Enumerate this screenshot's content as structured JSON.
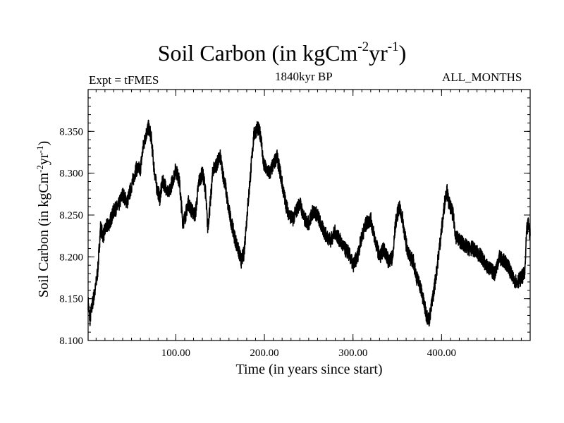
{
  "header": {
    "title_main": "Soil Carbon (in kgCm",
    "title_exp1": "-2",
    "title_mid": "yr",
    "title_exp2": "-1",
    "title_end": ")",
    "expt": "Expt = tFMES",
    "period": "1840kyr BP",
    "months": "ALL_MONTHS"
  },
  "chart_data": {
    "type": "line",
    "title": "Soil Carbon (in kgCm-2yr-1)",
    "xlabel": "Time (in years since start)",
    "ylabel": "Soil Carbon (in kgCm-2yr-1)",
    "ylabel_parts": {
      "main": "Soil Carbon (in kgCm",
      "exp1": "-2",
      "mid": "yr",
      "exp2": "-1",
      "end": ")"
    },
    "xlim": [
      1,
      500
    ],
    "ylim": [
      8.1,
      8.4
    ],
    "xticks": [
      100,
      200,
      300,
      400
    ],
    "xtick_labels": [
      "100.00",
      "200.00",
      "300.00",
      "400.00"
    ],
    "yticks": [
      8.1,
      8.15,
      8.2,
      8.25,
      8.3,
      8.35
    ],
    "ytick_labels": [
      "8.100",
      "8.150",
      "8.200",
      "8.250",
      "8.300",
      "8.350"
    ],
    "grid": false,
    "line_color": "#000000",
    "series": [
      {
        "x": [
          1,
          3,
          6,
          9,
          12,
          15,
          18,
          21,
          25,
          30,
          35,
          40,
          45,
          50,
          55,
          60,
          63,
          66,
          69,
          72,
          75,
          78,
          82,
          85,
          88,
          92,
          96,
          100,
          104,
          108,
          111,
          114,
          118,
          122,
          126,
          130,
          133,
          136,
          139,
          142,
          146,
          150,
          153,
          156,
          159,
          162,
          166,
          170,
          174,
          177,
          180,
          184,
          188,
          192,
          196,
          199,
          202,
          206,
          210,
          214,
          218,
          222,
          225,
          228,
          232,
          236,
          240,
          245,
          250,
          255,
          260,
          265,
          270,
          275,
          280,
          285,
          290,
          295,
          300,
          305,
          310,
          315,
          320,
          325,
          330,
          335,
          340,
          345,
          348,
          352,
          356,
          360,
          364,
          368,
          372,
          376,
          380,
          383,
          386,
          390,
          394,
          398,
          402,
          404,
          406,
          408,
          410,
          413,
          416,
          420,
          425,
          430,
          435,
          440,
          445,
          450,
          455,
          460,
          465,
          470,
          475,
          480,
          485,
          490,
          494,
          496,
          498,
          500
        ],
        "y": [
          8.145,
          8.125,
          8.145,
          8.16,
          8.185,
          8.235,
          8.225,
          8.235,
          8.24,
          8.255,
          8.26,
          8.275,
          8.265,
          8.285,
          8.305,
          8.305,
          8.33,
          8.345,
          8.355,
          8.345,
          8.31,
          8.285,
          8.27,
          8.29,
          8.285,
          8.275,
          8.29,
          8.305,
          8.29,
          8.24,
          8.25,
          8.265,
          8.255,
          8.25,
          8.29,
          8.3,
          8.285,
          8.235,
          8.265,
          8.305,
          8.31,
          8.32,
          8.3,
          8.285,
          8.26,
          8.245,
          8.225,
          8.21,
          8.195,
          8.205,
          8.245,
          8.295,
          8.345,
          8.355,
          8.345,
          8.31,
          8.305,
          8.3,
          8.31,
          8.32,
          8.3,
          8.275,
          8.26,
          8.25,
          8.245,
          8.255,
          8.265,
          8.245,
          8.24,
          8.255,
          8.25,
          8.235,
          8.225,
          8.22,
          8.23,
          8.22,
          8.21,
          8.205,
          8.19,
          8.2,
          8.225,
          8.24,
          8.245,
          8.22,
          8.2,
          8.21,
          8.195,
          8.2,
          8.24,
          8.26,
          8.245,
          8.215,
          8.2,
          8.195,
          8.175,
          8.165,
          8.145,
          8.13,
          8.125,
          8.15,
          8.18,
          8.215,
          8.25,
          8.27,
          8.28,
          8.265,
          8.26,
          8.25,
          8.225,
          8.22,
          8.215,
          8.21,
          8.21,
          8.205,
          8.2,
          8.19,
          8.185,
          8.18,
          8.2,
          8.195,
          8.19,
          8.175,
          8.17,
          8.175,
          8.18,
          8.23,
          8.24,
          8.225
        ]
      }
    ]
  }
}
